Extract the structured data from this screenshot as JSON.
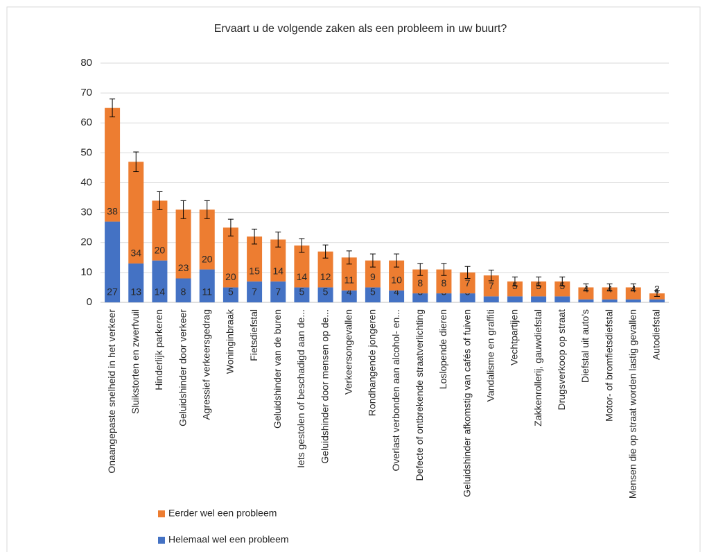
{
  "chart_data": {
    "type": "stacked_bar",
    "title": "Ervaart u de volgende zaken als een probleem in uw buurt?",
    "categories": [
      "Onaangepaste snelheid in het verkeer",
      "Sluikstorten en zwerfvuil",
      "Hinderlijk parkeren",
      "Geluidshinder door verkeer",
      "Agressief verkeersgedrag",
      "Woninginbraak",
      "Fietsdiefstal",
      "Geluidshinder van de buren",
      "Iets gestolen of beschadigd aan de...",
      "Geluidshinder door mensen op de...",
      "Verkeersongevallen",
      "Rondhangende jongeren",
      "Overlast verbonden aan alcohol- en...",
      "Defecte of ontbrekende straatverlichting",
      "Loslopende dieren",
      "Geluidshinder afkomstig van cafés of fuiven",
      "Vandalisme en graffiti",
      "Vechtpartijen",
      "Zakkenrollerij, gauwdiefstal",
      "Drugsverkoop op straat",
      "Diefstal uit auto's",
      "Motor- of bromfietsdiefstal",
      "Mensen die op straat worden lastig gevallen",
      "Autodiefstal"
    ],
    "series": [
      {
        "name": "Helemaal wel een probleem",
        "color": "#4472c4",
        "values": [
          27,
          13,
          14,
          8,
          11,
          5,
          7,
          7,
          5,
          5,
          4,
          5,
          4,
          3,
          3,
          3,
          2,
          2,
          2,
          2,
          1,
          1,
          1,
          1
        ]
      },
      {
        "name": "Eerder wel een probleem",
        "color": "#ed7d31",
        "values": [
          38,
          34,
          20,
          23,
          20,
          20,
          15,
          14,
          14,
          12,
          11,
          9,
          10,
          8,
          8,
          7,
          7,
          5,
          5,
          5,
          4,
          4,
          4,
          2
        ]
      }
    ],
    "errors": [
      3,
      3.3,
      3,
      3,
      3,
      2.8,
      2.5,
      2.5,
      2.3,
      2.2,
      2.2,
      2.2,
      2.2,
      2,
      2,
      2,
      1.8,
      1.5,
      1.5,
      1.5,
      1.2,
      1.2,
      1.2,
      1
    ],
    "ylim": [
      0,
      80
    ],
    "yticks": [
      0,
      10,
      20,
      30,
      40,
      50,
      60,
      70,
      80
    ],
    "grid": true,
    "legend": "lower left"
  }
}
